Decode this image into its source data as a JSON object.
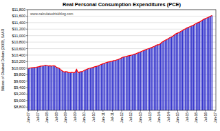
{
  "chart_data": {
    "type": "bar",
    "title": "Real Personal Consumption Expenditures (PCE)",
    "y_label": "Billions of Chained Dollars (2009), SAAR",
    "annotation": "www.calculatedriskblog.com",
    "categories": [
      "Jan-07",
      null,
      null,
      null,
      null,
      null,
      "Jul-07",
      null,
      null,
      null,
      null,
      null,
      "Jan-08",
      null,
      null,
      null,
      null,
      null,
      "Jul-08",
      null,
      null,
      null,
      null,
      null,
      "Jan-09",
      null,
      null,
      null,
      null,
      null,
      "Jul-09",
      null,
      null,
      null,
      null,
      null,
      "Jan-10",
      null,
      null,
      null,
      null,
      null,
      "Jul-10",
      null,
      null,
      null,
      null,
      null,
      "Jan-11",
      null,
      null,
      null,
      null,
      null,
      "Jul-11",
      null,
      null,
      null,
      null,
      null,
      "Jan-12",
      null,
      null,
      null,
      null,
      null,
      "Jul-12",
      null,
      null,
      null,
      null,
      null,
      "Jan-13",
      null,
      null,
      null,
      null,
      null,
      "Jul-13",
      null,
      null,
      null,
      null,
      null,
      "Jan-14",
      null,
      null,
      null,
      null,
      null,
      "Jul-14",
      null,
      null,
      null,
      null,
      null,
      "Jan-15",
      null,
      null,
      null,
      null,
      null,
      "Jul-15",
      null,
      null,
      null,
      null,
      null,
      "Jan-16",
      null,
      null,
      null,
      null,
      null,
      "Jul-16",
      null,
      null,
      null,
      null,
      null,
      "Jan-17"
    ],
    "series": [
      {
        "type": "bar",
        "color": "#3333cc",
        "values": [
          9990,
          10000,
          10010,
          10015,
          10020,
          10025,
          10035,
          10045,
          10060,
          10065,
          10075,
          10090,
          10080,
          10065,
          10070,
          10060,
          10075,
          10070,
          10030,
          10010,
          9990,
          9940,
          9910,
          9880,
          9890,
          9885,
          9860,
          9860,
          9870,
          9860,
          9870,
          9960,
          9860,
          9880,
          9890,
          9900,
          9930,
          9950,
          9975,
          9990,
          10000,
          10015,
          10030,
          10045,
          10055,
          10075,
          10095,
          10115,
          10135,
          10150,
          10170,
          10185,
          10195,
          10205,
          10215,
          10230,
          10240,
          10255,
          10270,
          10290,
          10320,
          10340,
          10350,
          10360,
          10375,
          10385,
          10395,
          10410,
          10430,
          10440,
          10460,
          10480,
          10500,
          10520,
          10540,
          10560,
          10580,
          10595,
          10610,
          10630,
          10650,
          10670,
          10700,
          10720,
          10720,
          10760,
          10800,
          10830,
          10860,
          10880,
          10910,
          10940,
          10960,
          10990,
          11030,
          11060,
          11080,
          11100,
          11130,
          11160,
          11190,
          11210,
          11240,
          11260,
          11280,
          11300,
          11320,
          11350,
          11380,
          11400,
          11420,
          11450,
          11480,
          11510,
          11530,
          11550,
          11570,
          11600,
          11620,
          null,
          null
        ]
      },
      {
        "type": "line",
        "color": "#ff0000",
        "values": [
          9990,
          10000,
          10010,
          10015,
          10020,
          10025,
          10035,
          10045,
          10060,
          10065,
          10075,
          10090,
          10080,
          10065,
          10070,
          10060,
          10075,
          10070,
          10030,
          10010,
          9990,
          9940,
          9910,
          9880,
          9890,
          9885,
          9860,
          9860,
          9870,
          9860,
          9870,
          9960,
          9860,
          9880,
          9890,
          9900,
          9930,
          9950,
          9975,
          9990,
          10000,
          10015,
          10030,
          10045,
          10055,
          10075,
          10095,
          10115,
          10135,
          10150,
          10170,
          10185,
          10195,
          10205,
          10215,
          10230,
          10240,
          10255,
          10270,
          10290,
          10320,
          10340,
          10350,
          10360,
          10375,
          10385,
          10395,
          10410,
          10430,
          10440,
          10460,
          10480,
          10500,
          10520,
          10540,
          10560,
          10580,
          10595,
          10610,
          10630,
          10650,
          10670,
          10700,
          10720,
          10720,
          10760,
          10800,
          10830,
          10860,
          10880,
          10910,
          10940,
          10960,
          10990,
          11030,
          11060,
          11080,
          11100,
          11130,
          11160,
          11190,
          11210,
          11240,
          11260,
          11280,
          11300,
          11320,
          11350,
          11380,
          11400,
          11420,
          11450,
          11480,
          11510,
          11530,
          11550,
          11570,
          11600,
          11620,
          null,
          null
        ]
      }
    ],
    "ylim": [
      8700,
      11800
    ],
    "yticks": [
      {
        "value": 8800,
        "label": "$8,800"
      },
      {
        "value": 9000,
        "label": "$9,000"
      },
      {
        "value": 9200,
        "label": "$9,200"
      },
      {
        "value": 9400,
        "label": "$9,400"
      },
      {
        "value": 9600,
        "label": "$9,600"
      },
      {
        "value": 9800,
        "label": "$9,800"
      },
      {
        "value": 10000,
        "label": "$10,000"
      },
      {
        "value": 10200,
        "label": "$10,200"
      },
      {
        "value": 10400,
        "label": "$10,400"
      },
      {
        "value": 10600,
        "label": "$10,600"
      },
      {
        "value": 10800,
        "label": "$10,800"
      },
      {
        "value": 11000,
        "label": "$11,000"
      },
      {
        "value": 11200,
        "label": "$11,200"
      },
      {
        "value": 11400,
        "label": "$11,400"
      },
      {
        "value": 11600,
        "label": "$11,600"
      },
      {
        "value": 11800,
        "label": "$11,800"
      }
    ],
    "grid": true
  }
}
